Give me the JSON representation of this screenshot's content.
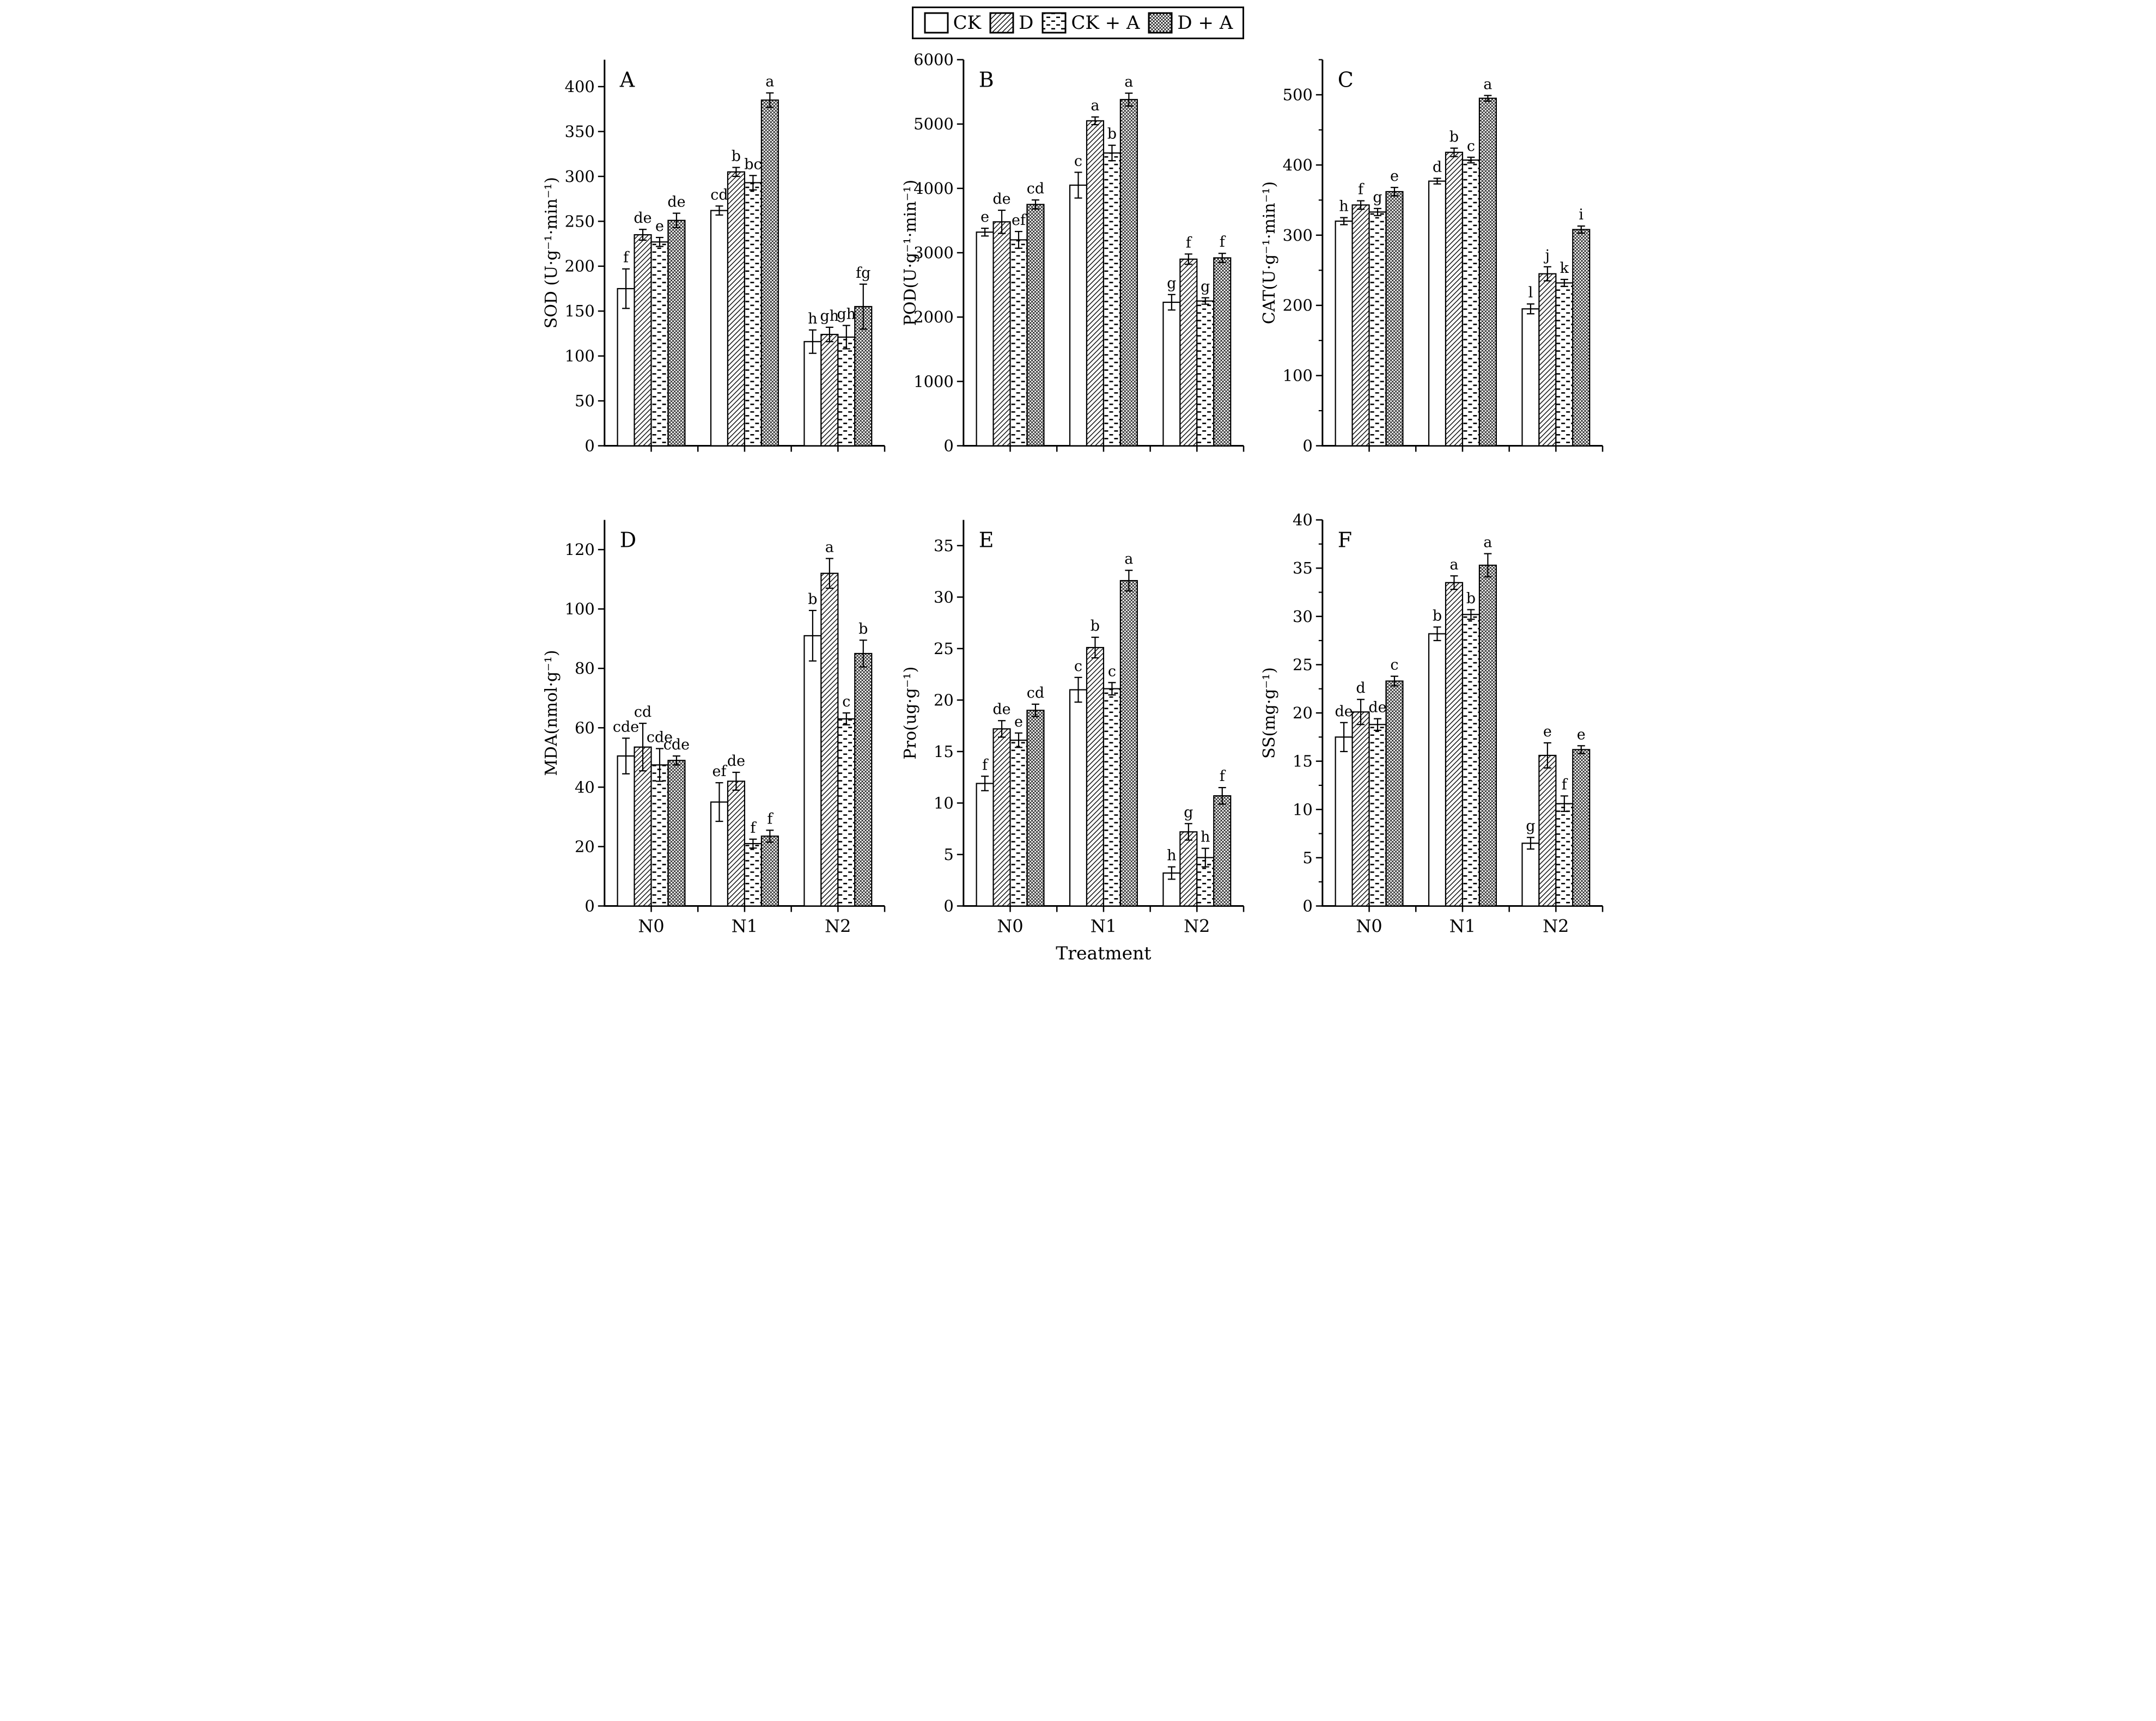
{
  "colors": {
    "ink": "#000000",
    "background": "#ffffff"
  },
  "legend": {
    "items": [
      {
        "label": "CK",
        "pattern": "plain"
      },
      {
        "label": "D",
        "pattern": "diagonal-hatch"
      },
      {
        "label": "CK + A",
        "pattern": "dashed-rows"
      },
      {
        "label": "D + A",
        "pattern": "crosshatch"
      }
    ]
  },
  "chart_data": [
    {
      "type": "bar",
      "panel_letter": "A",
      "ylabel": "SOD (U·g⁻¹·min⁻¹)",
      "ylim": [
        0,
        430
      ],
      "ytick_major": 50,
      "ytick_label_max": 400,
      "ytick_minor": null,
      "categories": [
        "N0",
        "N1",
        "N2"
      ],
      "show_x_tick_labels": false,
      "xlabel": "",
      "series": [
        {
          "name": "CK",
          "values": [
            175,
            262,
            116
          ],
          "errors": [
            22,
            5,
            13
          ],
          "letters": [
            "f",
            "cd",
            "h"
          ]
        },
        {
          "name": "D",
          "values": [
            235,
            305,
            124
          ],
          "errors": [
            6,
            5,
            8
          ],
          "letters": [
            "de",
            "b",
            "gh"
          ]
        },
        {
          "name": "CK + A",
          "values": [
            227,
            293,
            121
          ],
          "errors": [
            5,
            8,
            13
          ],
          "letters": [
            "e",
            "bc",
            "gh"
          ]
        },
        {
          "name": "D + A",
          "values": [
            251,
            385,
            155
          ],
          "errors": [
            8,
            8,
            25
          ],
          "letters": [
            "de",
            "a",
            "fg"
          ]
        }
      ]
    },
    {
      "type": "bar",
      "panel_letter": "B",
      "ylabel": "POD(U·g⁻¹·min⁻¹)",
      "ylim": [
        0,
        6000
      ],
      "ytick_major": 1000,
      "ytick_label_max": 6000,
      "ytick_minor": null,
      "categories": [
        "N0",
        "N1",
        "N2"
      ],
      "show_x_tick_labels": false,
      "xlabel": "",
      "series": [
        {
          "name": "CK",
          "values": [
            3320,
            4050,
            2230
          ],
          "errors": [
            60,
            200,
            120
          ],
          "letters": [
            "e",
            "c",
            "g"
          ]
        },
        {
          "name": "D",
          "values": [
            3480,
            5050,
            2900
          ],
          "errors": [
            180,
            60,
            80
          ],
          "letters": [
            "de",
            "a",
            "f"
          ]
        },
        {
          "name": "CK + A",
          "values": [
            3200,
            4550,
            2250
          ],
          "errors": [
            130,
            120,
            50
          ],
          "letters": [
            "ef",
            "b",
            "g"
          ]
        },
        {
          "name": "D + A",
          "values": [
            3750,
            5380,
            2920
          ],
          "errors": [
            70,
            100,
            70
          ],
          "letters": [
            "cd",
            "a",
            "f"
          ]
        }
      ]
    },
    {
      "type": "bar",
      "panel_letter": "C",
      "ylabel": "CAT(U·g⁻¹·min⁻¹)",
      "ylim": [
        0,
        550
      ],
      "ytick_major": 100,
      "ytick_label_max": 500,
      "ytick_minor": 50,
      "categories": [
        "N0",
        "N1",
        "N2"
      ],
      "show_x_tick_labels": false,
      "xlabel": "",
      "series": [
        {
          "name": "CK",
          "values": [
            320,
            377,
            195
          ],
          "errors": [
            5,
            4,
            7
          ],
          "letters": [
            "h",
            "d",
            "l"
          ]
        },
        {
          "name": "D",
          "values": [
            343,
            418,
            245
          ],
          "errors": [
            6,
            6,
            10
          ],
          "letters": [
            "f",
            "b",
            "j"
          ]
        },
        {
          "name": "CK + A",
          "values": [
            333,
            407,
            232
          ],
          "errors": [
            5,
            4,
            5
          ],
          "letters": [
            "g",
            "c",
            "k"
          ]
        },
        {
          "name": "D + A",
          "values": [
            362,
            495,
            308
          ],
          "errors": [
            6,
            4,
            5
          ],
          "letters": [
            "e",
            "a",
            "i"
          ]
        }
      ]
    },
    {
      "type": "bar",
      "panel_letter": "D",
      "ylabel": "MDA(nmol·g⁻¹)",
      "ylim": [
        0,
        130
      ],
      "ytick_major": 20,
      "ytick_label_max": 120,
      "ytick_minor": null,
      "categories": [
        "N0",
        "N1",
        "N2"
      ],
      "show_x_tick_labels": true,
      "xlabel": "",
      "series": [
        {
          "name": "CK",
          "values": [
            50.5,
            35,
            91
          ],
          "errors": [
            6,
            6.5,
            8.5
          ],
          "letters": [
            "cde",
            "ef",
            "b"
          ]
        },
        {
          "name": "D",
          "values": [
            53.5,
            42,
            112
          ],
          "errors": [
            8,
            3,
            5
          ],
          "letters": [
            "cd",
            "de",
            "a"
          ]
        },
        {
          "name": "CK + A",
          "values": [
            47.5,
            21,
            63
          ],
          "errors": [
            5.5,
            1.5,
            2
          ],
          "letters": [
            "cde",
            "f",
            "c"
          ]
        },
        {
          "name": "D + A",
          "values": [
            49,
            23.5,
            85
          ],
          "errors": [
            1.5,
            2,
            4.5
          ],
          "letters": [
            "cde",
            "f",
            "b"
          ]
        }
      ]
    },
    {
      "type": "bar",
      "panel_letter": "E",
      "ylabel": "Pro(ug·g⁻¹)",
      "ylim": [
        0,
        37.5
      ],
      "ytick_major": 5,
      "ytick_label_max": 35,
      "ytick_minor": null,
      "categories": [
        "N0",
        "N1",
        "N2"
      ],
      "show_x_tick_labels": true,
      "xlabel": "Treatment",
      "series": [
        {
          "name": "CK",
          "values": [
            11.9,
            21.0,
            3.2
          ],
          "errors": [
            0.7,
            1.2,
            0.6
          ],
          "letters": [
            "f",
            "c",
            "h"
          ]
        },
        {
          "name": "D",
          "values": [
            17.2,
            25.1,
            7.2
          ],
          "errors": [
            0.8,
            1.0,
            0.8
          ],
          "letters": [
            "de",
            "b",
            "g"
          ]
        },
        {
          "name": "CK + A",
          "values": [
            16.1,
            21.1,
            4.7
          ],
          "errors": [
            0.7,
            0.6,
            0.9
          ],
          "letters": [
            "e",
            "c",
            "h"
          ]
        },
        {
          "name": "D + A",
          "values": [
            19.0,
            31.6,
            10.7
          ],
          "errors": [
            0.6,
            1.0,
            0.8
          ],
          "letters": [
            "cd",
            "a",
            "f"
          ]
        }
      ]
    },
    {
      "type": "bar",
      "panel_letter": "F",
      "ylabel": "SS(mg·g⁻¹)",
      "ylim": [
        0,
        40
      ],
      "ytick_major": 5,
      "ytick_label_max": 40,
      "ytick_minor": 2.5,
      "categories": [
        "N0",
        "N1",
        "N2"
      ],
      "show_x_tick_labels": true,
      "xlabel": "",
      "series": [
        {
          "name": "CK",
          "values": [
            17.5,
            28.2,
            6.5
          ],
          "errors": [
            1.5,
            0.7,
            0.6
          ],
          "letters": [
            "de",
            "b",
            "g"
          ]
        },
        {
          "name": "D",
          "values": [
            20.1,
            33.5,
            15.6
          ],
          "errors": [
            1.3,
            0.7,
            1.3
          ],
          "letters": [
            "d",
            "a",
            "e"
          ]
        },
        {
          "name": "CK + A",
          "values": [
            18.8,
            30.2,
            10.6
          ],
          "errors": [
            0.6,
            0.5,
            0.8
          ],
          "letters": [
            "de",
            "b",
            "f"
          ]
        },
        {
          "name": "D + A",
          "values": [
            23.3,
            35.3,
            16.2
          ],
          "errors": [
            0.5,
            1.2,
            0.4
          ],
          "letters": [
            "c",
            "a",
            "e"
          ]
        }
      ]
    }
  ]
}
